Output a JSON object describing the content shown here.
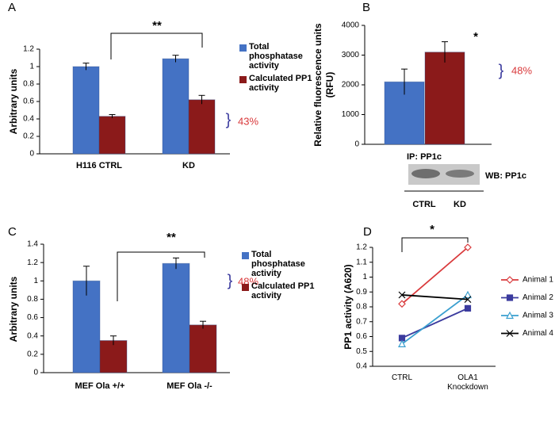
{
  "chart_data": [
    {
      "type": "bar",
      "panel_label": "A",
      "ylabel": "Arbitrary units",
      "categories": [
        "H116 CTRL",
        "KD"
      ],
      "series": [
        {
          "name": "Total phosphatase activity",
          "color": "#4472c4",
          "values": [
            1.0,
            1.09
          ],
          "errors": [
            0.04,
            0.04
          ]
        },
        {
          "name": "Calculated PP1 activity",
          "color": "#8b1a1a",
          "values": [
            0.43,
            0.62
          ],
          "errors": [
            0.02,
            0.05
          ]
        }
      ],
      "ylim": [
        0,
        1.2
      ],
      "yticks": [
        0,
        0.2,
        0.4,
        0.6,
        0.8,
        1,
        1.2
      ],
      "annotations": [
        "**",
        "43%"
      ]
    },
    {
      "type": "bar",
      "panel_label": "B",
      "ylabel": "Relative fluorescence units (RFU)",
      "xlabel": "IP: PP1c",
      "blot_label": "WB: PP1c",
      "categories": [
        "CTRL",
        "KD"
      ],
      "values": [
        2100,
        3100
      ],
      "errors": [
        430,
        350
      ],
      "colors": [
        "#4472c4",
        "#8b1a1a"
      ],
      "ylim": [
        0,
        4000
      ],
      "yticks": [
        0,
        1000,
        2000,
        3000,
        4000
      ],
      "annotations": [
        "*",
        "48%"
      ]
    },
    {
      "type": "bar",
      "panel_label": "C",
      "ylabel": "Arbitrary units",
      "categories": [
        "MEF Ola +/+",
        "MEF Ola -/-"
      ],
      "series": [
        {
          "name": "Total phosphatase activity",
          "color": "#4472c4",
          "values": [
            1.0,
            1.19
          ],
          "errors": [
            0.16,
            0.06
          ]
        },
        {
          "name": "Calculated PP1 activity",
          "color": "#8b1a1a",
          "values": [
            0.35,
            0.52
          ],
          "errors": [
            0.05,
            0.04
          ]
        }
      ],
      "ylim": [
        0,
        1.4
      ],
      "yticks": [
        0,
        0.2,
        0.4,
        0.6,
        0.8,
        1,
        1.2,
        1.4
      ],
      "annotations": [
        "**",
        "48%"
      ]
    },
    {
      "type": "line",
      "panel_label": "D",
      "ylabel": "PP1 activity (A620)",
      "categories": [
        "CTRL",
        "OLA1 Knockdown"
      ],
      "series": [
        {
          "name": "Animal 1",
          "color": "#d9393b",
          "marker": "diamond-open",
          "values": [
            0.82,
            1.2
          ]
        },
        {
          "name": "Animal 2",
          "color": "#3b3b9e",
          "marker": "square",
          "values": [
            0.59,
            0.79
          ]
        },
        {
          "name": "Animal 3",
          "color": "#3a9fcf",
          "marker": "triangle-open",
          "values": [
            0.55,
            0.88
          ]
        },
        {
          "name": "Animal 4",
          "color": "#000000",
          "marker": "x",
          "values": [
            0.88,
            0.85
          ]
        }
      ],
      "ylim": [
        0.4,
        1.2
      ],
      "yticks": [
        0.4,
        0.5,
        0.6,
        0.7,
        0.8,
        0.9,
        1,
        1.1,
        1.2
      ],
      "annotations": [
        "*"
      ]
    }
  ]
}
